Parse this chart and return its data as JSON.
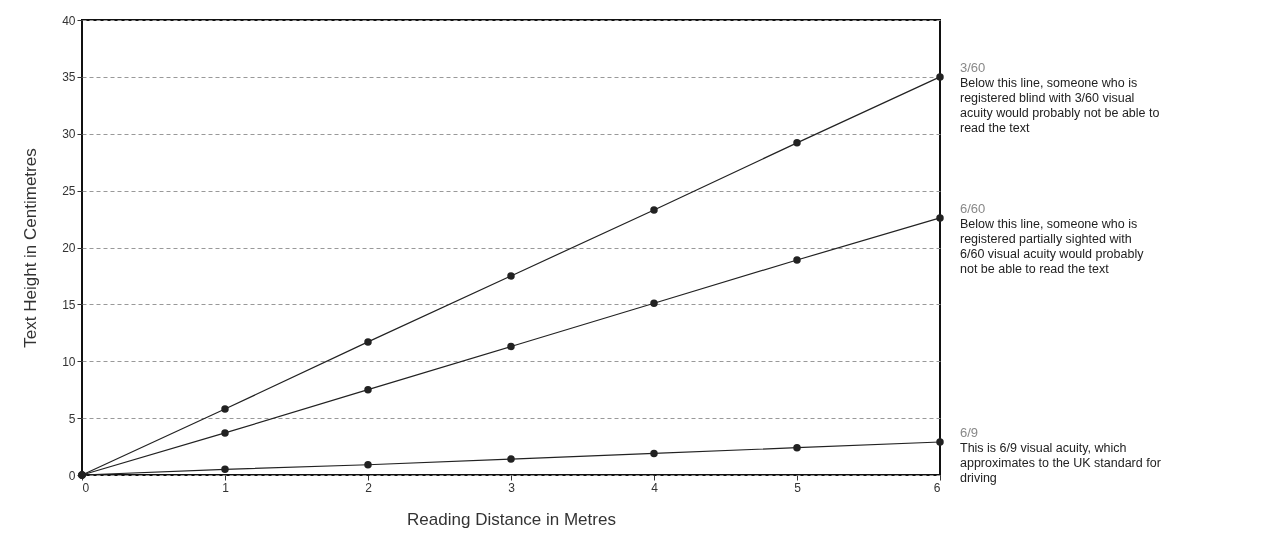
{
  "chart_data": {
    "type": "line",
    "xlabel": "Reading Distance in Metres",
    "ylabel": "Text Height in Centimetres",
    "x": [
      0,
      1,
      2,
      3,
      4,
      5,
      6
    ],
    "series": [
      {
        "name": "3/60",
        "color": "#222222",
        "values": [
          0,
          5.8,
          11.7,
          17.5,
          23.3,
          29.2,
          35
        ]
      },
      {
        "name": "6/60",
        "color": "#222222",
        "values": [
          0,
          3.7,
          7.5,
          11.3,
          15.1,
          18.9,
          22.6
        ]
      },
      {
        "name": "6/9",
        "color": "#222222",
        "values": [
          0,
          0.5,
          0.9,
          1.4,
          1.9,
          2.4,
          2.9
        ]
      }
    ],
    "xlim": [
      0,
      6
    ],
    "xticks": [
      0,
      1,
      2,
      3,
      4,
      5,
      6
    ],
    "ylim": [
      0,
      40
    ],
    "yticks": [
      0,
      5,
      10,
      15,
      20,
      25,
      30,
      35,
      40
    ],
    "grid": "y",
    "legend": false,
    "marker": "circle",
    "line_style": "solid",
    "annotations": [
      "Below this line, someone who is registered blind with 3/60 visual acuity would probably not be able to read the text",
      "Below this line, someone who is registered partially sighted with 6/60 visual acuity would probably not be able to read the text",
      "This is 6/9 visual acuity, which approximates to the UK standard for driving"
    ]
  }
}
